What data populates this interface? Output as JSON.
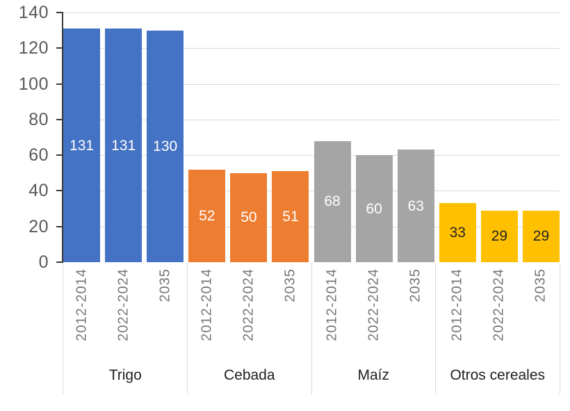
{
  "chart_data": {
    "type": "bar",
    "title": "",
    "xlabel": "",
    "ylabel": "",
    "ylim": [
      0,
      140
    ],
    "y_ticks": [
      0,
      20,
      40,
      60,
      80,
      100,
      120,
      140
    ],
    "grid": true,
    "legend_position": "none",
    "series_labels": [
      "2012-2014",
      "2022-2024",
      "2035"
    ],
    "groups": [
      {
        "label": "Trigo",
        "color": "#4472C4",
        "value_label_color": "#ffffff",
        "values": [
          131,
          131,
          130
        ]
      },
      {
        "label": "Cebada",
        "color": "#ED7D31",
        "value_label_color": "#ffffff",
        "values": [
          52,
          50,
          51
        ]
      },
      {
        "label": "Maíz",
        "color": "#A5A5A5",
        "value_label_color": "#ffffff",
        "values": [
          68,
          60,
          63
        ]
      },
      {
        "label": "Otros cereales",
        "color": "#FFC000",
        "value_label_color": "#262626",
        "values": [
          33,
          29,
          29
        ]
      }
    ]
  },
  "style": {
    "gridline_color": "#d9d9d9",
    "axis_line_color": "#3a3a3a",
    "y_tick_label_color": "#595959",
    "period_label_color": "#767676",
    "group_label_color": "#1f1f1f",
    "background_color": "#ffffff"
  }
}
